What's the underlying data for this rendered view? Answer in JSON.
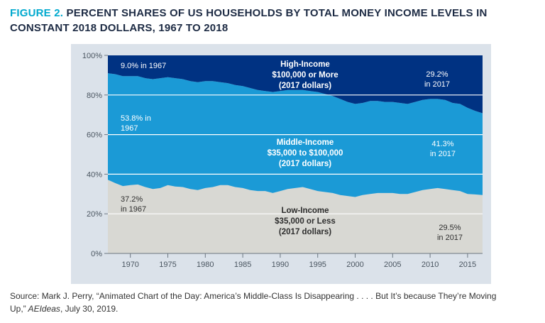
{
  "header": {
    "figure_label": "FIGURE 2.",
    "title_rest": "PERCENT SHARES OF US HOUSEHOLDS BY TOTAL MONEY INCOME LEVELS IN CONSTANT 2018 DOLLARS, 1967 TO 2018"
  },
  "colors": {
    "figure_label_teal": "#00a9ce",
    "title_navy": "#1d2b44",
    "panel_background": "#dbe2ea",
    "low_income_gray": "#d8d8d3",
    "middle_income_blue": "#1b9ad6",
    "high_income_navy": "#003282",
    "gridline_white": "#ffffff",
    "axis_gray": "#6b7680"
  },
  "annotations": {
    "high_left": "9.0% in 1967",
    "high_center": "High-Income\n$100,000 or More\n(2017 dollars)",
    "high_right": "29.2%\nin 2017",
    "mid_left": "53.8% in\n1967",
    "mid_center": "Middle-Income\n$35,000 to $100,000\n(2017 dollars)",
    "mid_right": "41.3%\nin 2017",
    "low_left": "37.2%\nin 1967",
    "low_center": "Low-Income\n$35,000 or Less\n(2017 dollars)",
    "low_right": "29.5%\nin 2017"
  },
  "source": {
    "line1": "Source: Mark J. Perry, “Animated Chart of the Day: America’s Middle-Class Is Disappearing . . . . But It’s because They’re Moving",
    "line2_prefix": "Up,”",
    "line2_italic": " AEIdeas",
    "line2_suffix": ", July 30, 2019."
  },
  "chart_data": {
    "type": "area",
    "stacked": true,
    "title": "FIGURE 2. PERCENT SHARES OF US HOUSEHOLDS BY TOTAL MONEY INCOME LEVELS IN CONSTANT 2018 DOLLARS, 1967 TO 2018",
    "xlabel": "",
    "ylabel": "",
    "ylim": [
      0,
      100
    ],
    "x": [
      1967,
      1968,
      1969,
      1970,
      1971,
      1972,
      1973,
      1974,
      1975,
      1976,
      1977,
      1978,
      1979,
      1980,
      1981,
      1982,
      1983,
      1984,
      1985,
      1986,
      1987,
      1988,
      1989,
      1990,
      1991,
      1992,
      1993,
      1994,
      1995,
      1996,
      1997,
      1998,
      1999,
      2000,
      2001,
      2002,
      2003,
      2004,
      2005,
      2006,
      2007,
      2008,
      2009,
      2010,
      2011,
      2012,
      2013,
      2014,
      2015,
      2016,
      2017
    ],
    "series": [
      {
        "name": "Low-Income $35,000 or Less (2017 dollars)",
        "color": "#d8d8d3",
        "start_label": "37.2% in 1967",
        "end_label": "29.5% in 2017",
        "values": [
          37.2,
          35.5,
          34,
          34.5,
          34.8,
          33.5,
          32.5,
          33,
          34.5,
          33.8,
          33.5,
          32.5,
          32,
          33,
          33.5,
          34.5,
          34.5,
          33.5,
          33,
          32,
          31.5,
          31.5,
          30.5,
          31.5,
          32.5,
          33,
          33.5,
          32.5,
          31.5,
          31,
          30.5,
          29.5,
          29,
          28.5,
          29.5,
          30,
          30.5,
          30.5,
          30.5,
          30,
          30,
          31,
          32,
          32.5,
          33,
          32.5,
          32,
          31.5,
          30,
          29.8,
          29.5
        ]
      },
      {
        "name": "Middle-Income $35,000 to $100,000 (2017 dollars)",
        "color": "#1b9ad6",
        "start_label": "53.8% in 1967",
        "end_label": "41.3% in 2017",
        "values": [
          53.8,
          55,
          55.5,
          55,
          54.7,
          55,
          55.5,
          55.5,
          54.5,
          54.7,
          54.5,
          54.5,
          54.5,
          54,
          53.5,
          52,
          51.5,
          51.5,
          51.5,
          51.5,
          51,
          50.5,
          51,
          50.5,
          50,
          49.5,
          49,
          49.5,
          50,
          49.5,
          49,
          48.5,
          47.5,
          47,
          46.5,
          47,
          46.5,
          46,
          46,
          46,
          45.5,
          45.5,
          45.5,
          45.5,
          45,
          45,
          44,
          44,
          43.5,
          42.2,
          41.3
        ]
      },
      {
        "name": "High-Income $100,000 or More (2017 dollars)",
        "color": "#003282",
        "start_label": "9.0% in 1967",
        "end_label": "29.2% in 2017",
        "values": [
          9,
          9.5,
          10.5,
          10.5,
          10.5,
          11.5,
          12,
          11.5,
          11,
          11.5,
          12,
          13,
          13.5,
          13,
          13,
          13.5,
          14,
          15,
          15.5,
          16.5,
          17.5,
          18,
          18.5,
          18,
          17.5,
          17.5,
          17.5,
          18,
          18.5,
          19.5,
          20.5,
          22,
          23.5,
          24.5,
          24,
          23,
          23,
          23.5,
          23.5,
          24,
          24.5,
          23.5,
          22.5,
          22,
          22,
          22.5,
          24,
          24.5,
          26.5,
          28,
          29.2
        ]
      }
    ],
    "yticks": [
      0,
      20,
      40,
      60,
      80,
      100
    ],
    "ytick_labels": [
      "0%",
      "20%",
      "40%",
      "60%",
      "80%",
      "100%"
    ],
    "xticks": [
      1970,
      1975,
      1980,
      1985,
      1990,
      1995,
      2000,
      2005,
      2010,
      2015
    ],
    "grid_lines": [
      20,
      40,
      60,
      80
    ],
    "grid": "horizontal white lines over areas",
    "legend_position": "in-chart annotations"
  }
}
